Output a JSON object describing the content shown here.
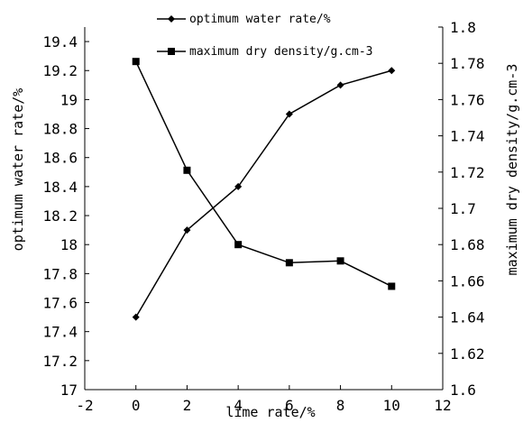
{
  "chart_data": {
    "type": "line",
    "xlabel": "lime rate/%",
    "x_ticks": [
      "-2",
      "0",
      "2",
      "4",
      "6",
      "8",
      "10",
      "12"
    ],
    "xlim": [
      -2,
      12
    ],
    "y_left": {
      "label": "optimum water rate/%",
      "ticks": [
        "17",
        "17.2",
        "17.4",
        "17.6",
        "17.8",
        "18",
        "18.2",
        "18.4",
        "18.6",
        "18.8",
        "19",
        "19.2",
        "19.4"
      ],
      "ylim": [
        17,
        19.5
      ]
    },
    "y_right": {
      "label": "maximum dry density/g.cm-3",
      "ticks": [
        "1.6",
        "1.62",
        "1.64",
        "1.66",
        "1.68",
        "1.7",
        "1.72",
        "1.74",
        "1.76",
        "1.78",
        "1.8"
      ],
      "ylim": [
        1.6,
        1.8
      ]
    },
    "series": [
      {
        "name": "optimum water rate/%",
        "axis": "left",
        "marker": "diamond",
        "x": [
          0,
          2,
          4,
          6,
          8,
          10
        ],
        "values": [
          17.5,
          18.1,
          18.4,
          18.9,
          19.1,
          19.2
        ]
      },
      {
        "name": "maximum dry density/g.cm-3",
        "axis": "right",
        "marker": "square",
        "x": [
          0,
          2,
          4,
          6,
          8,
          10
        ],
        "values": [
          1.781,
          1.721,
          1.68,
          1.67,
          1.671,
          1.657
        ]
      }
    ],
    "legend_position": "top-center",
    "grid": false
  }
}
